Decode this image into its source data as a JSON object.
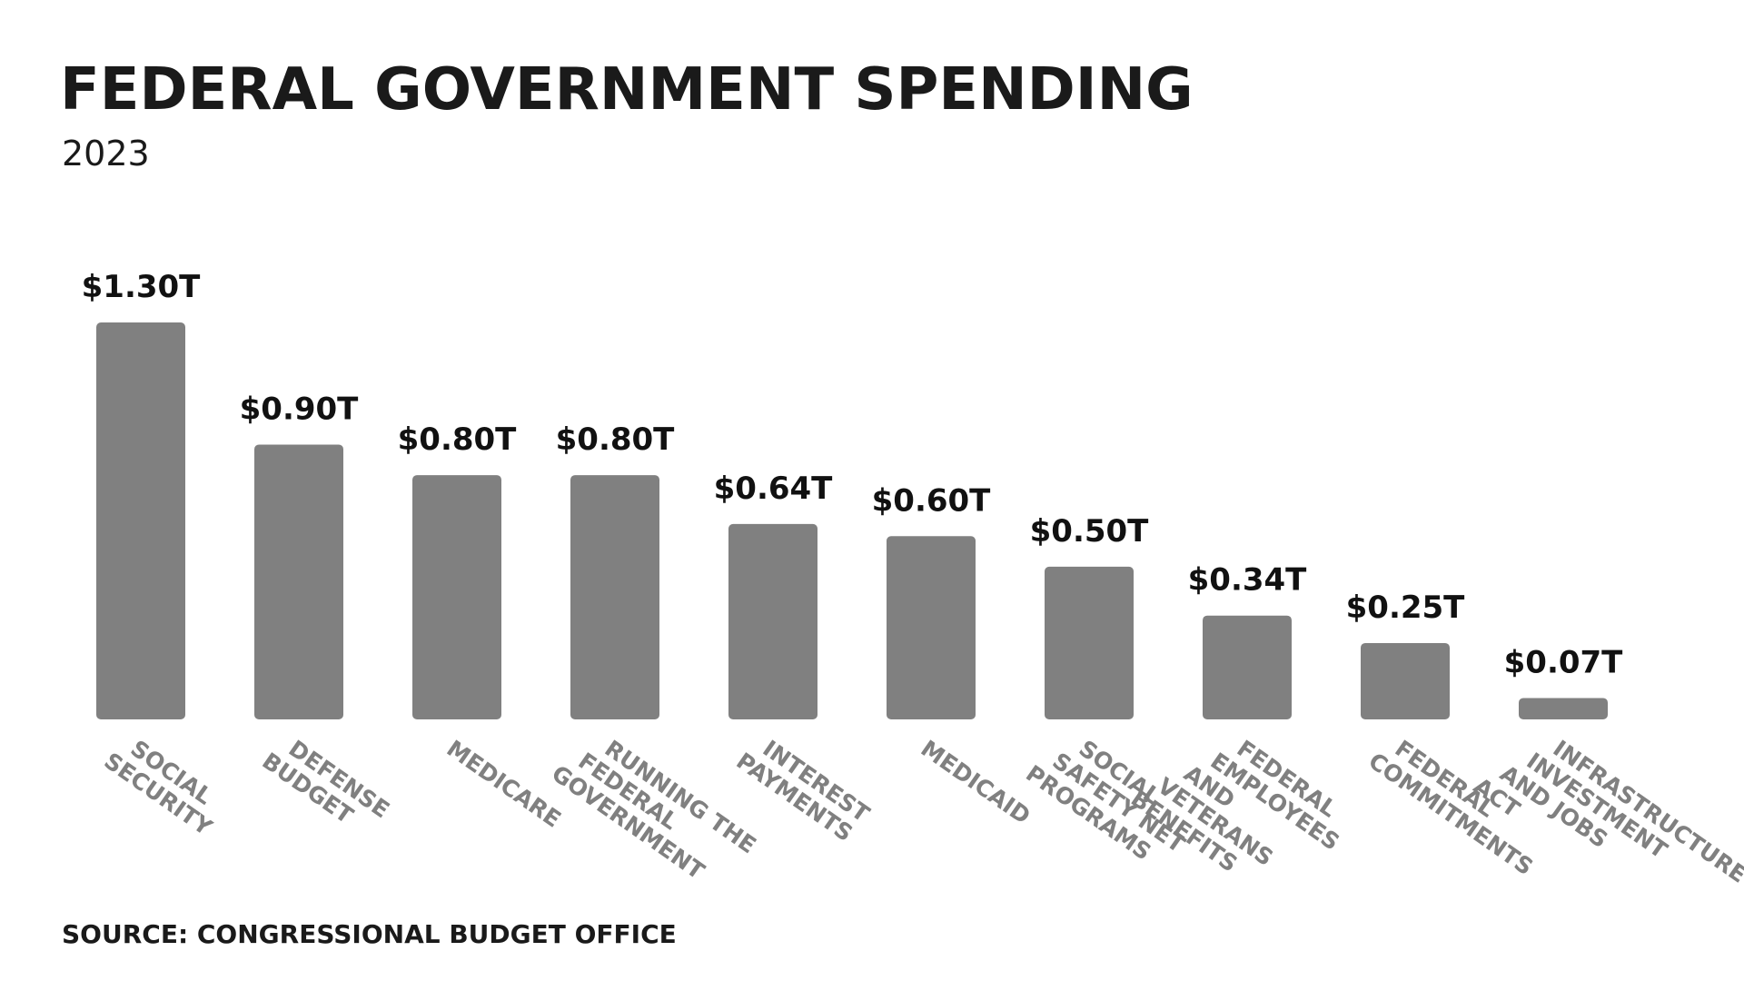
{
  "chart_data": {
    "type": "bar",
    "title": "FEDERAL GOVERNMENT SPENDING",
    "subtitle": "2023",
    "categories": [
      "SOCIAL SECURITY",
      "DEFENSE BUDGET",
      "MEDICARE",
      "RUNNING THE FEDERAL GOVERNMENT",
      "INTEREST PAYMENTS",
      "MEDICAID",
      "SOCIAL SAFETY NET PROGRAMS",
      "FEDERAL EMPLOYEES AND VETERANS BENEFITS",
      "FEDERAL COMMITMENTS",
      "INFRASTRUCTURE INVESTMENT AND JOBS ACT"
    ],
    "values": [
      1.3,
      0.9,
      0.8,
      0.8,
      0.64,
      0.6,
      0.5,
      0.34,
      0.25,
      0.07
    ],
    "value_labels": [
      "$1.30T",
      "$0.90T",
      "$0.80T",
      "$0.80T",
      "$0.64T",
      "$0.60T",
      "$0.50T",
      "$0.34T",
      "$0.25T",
      "$0.07T"
    ],
    "color": "#808080",
    "source": "SOURCE: CONGRESSIONAL BUDGET OFFICE"
  }
}
